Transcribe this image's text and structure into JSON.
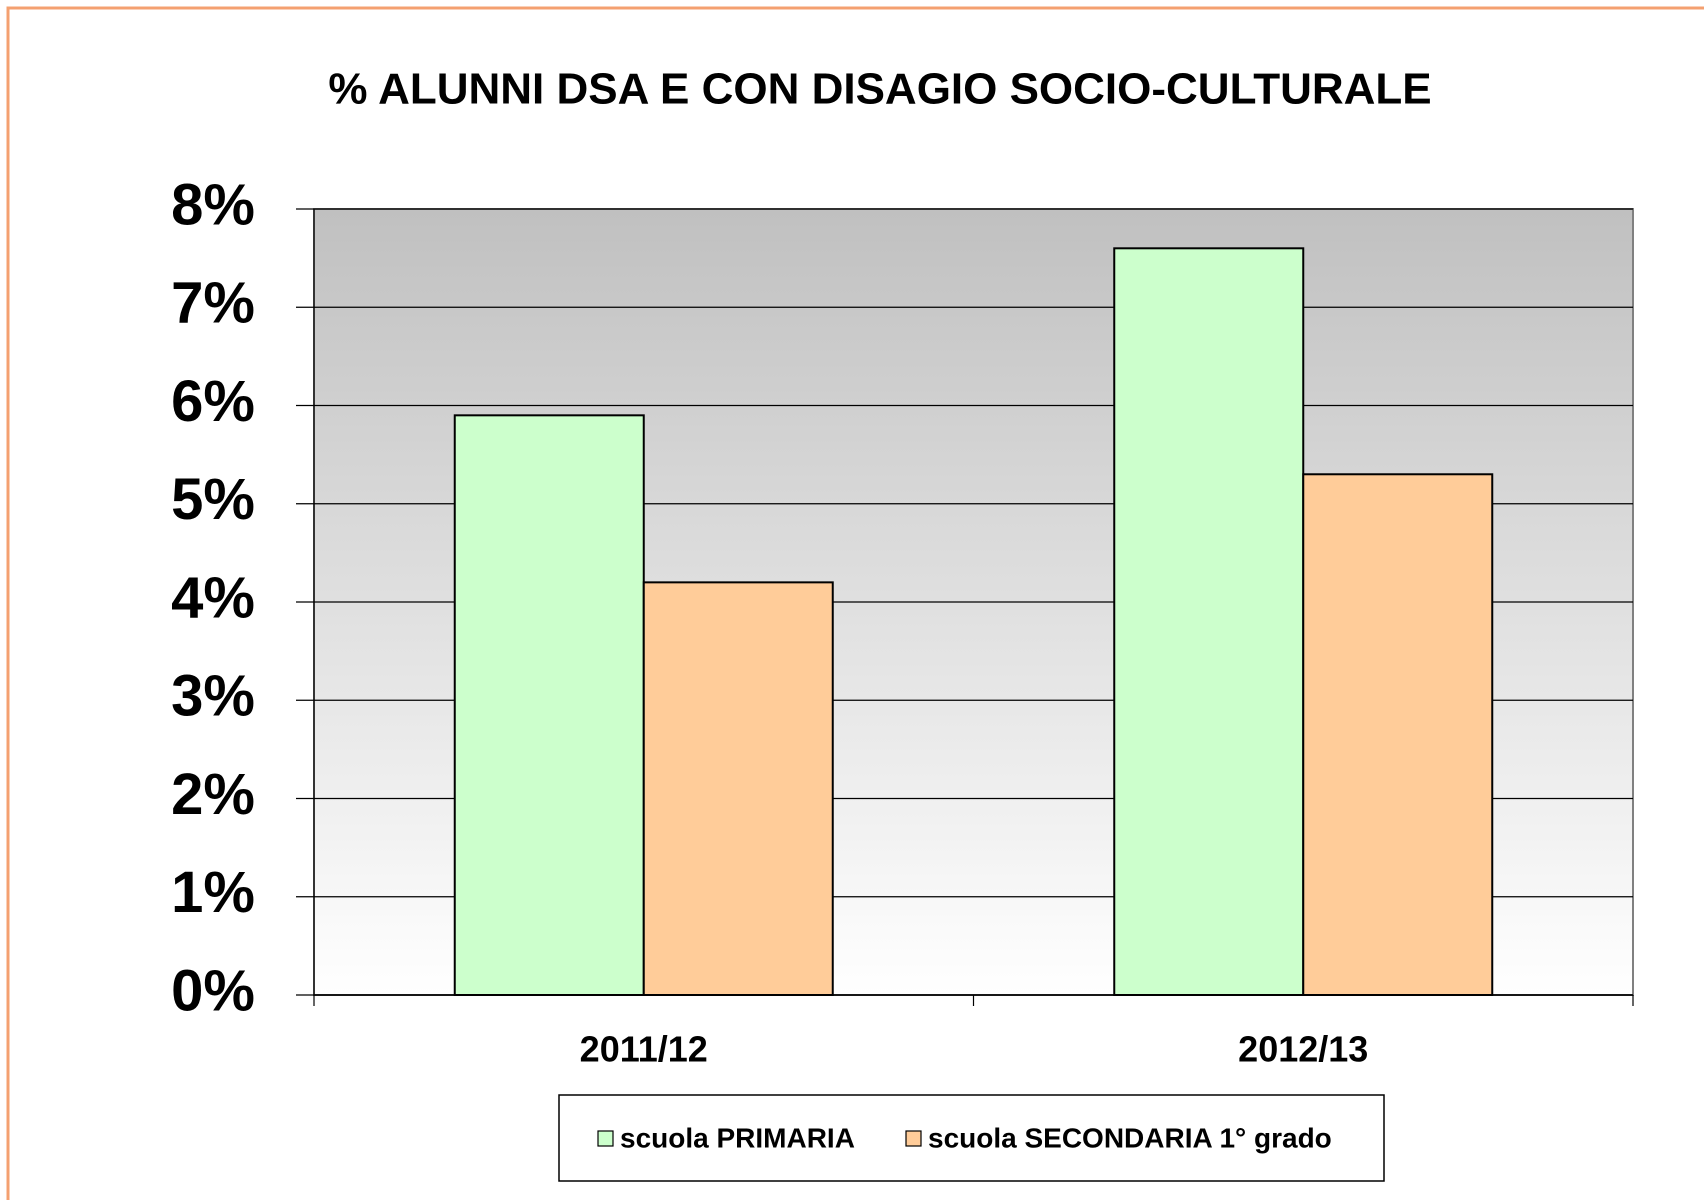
{
  "chart_data": {
    "type": "bar",
    "title": "% ALUNNI DSA E CON DISAGIO SOCIO-CULTURALE",
    "categories": [
      "2011/12",
      "2012/13"
    ],
    "series": [
      {
        "name": "scuola PRIMARIA",
        "color": "#ccffcc",
        "values": [
          5.9,
          7.6
        ]
      },
      {
        "name": "scuola SECONDARIA 1° grado",
        "color": "#ffcc99",
        "values": [
          4.2,
          5.3
        ]
      }
    ],
    "ylim": [
      0,
      8
    ],
    "yticks": [
      {
        "value": 0,
        "label": "0%"
      },
      {
        "value": 1,
        "label": "1%"
      },
      {
        "value": 2,
        "label": "2%"
      },
      {
        "value": 3,
        "label": "3%"
      },
      {
        "value": 4,
        "label": "4%"
      },
      {
        "value": 5,
        "label": "5%"
      },
      {
        "value": 6,
        "label": "6%"
      },
      {
        "value": 7,
        "label": "7%"
      },
      {
        "value": 8,
        "label": "8%"
      }
    ],
    "grid": true,
    "legend": "bottom"
  }
}
